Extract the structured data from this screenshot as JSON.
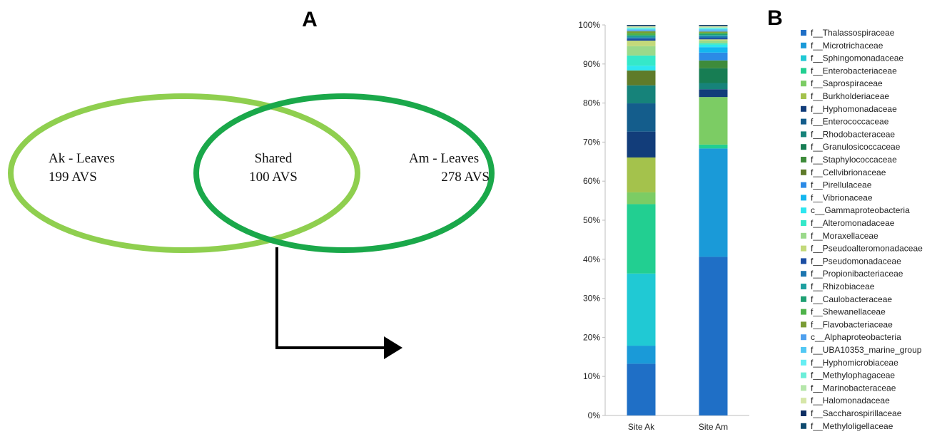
{
  "panels": {
    "a": "A",
    "b": "B"
  },
  "venn": {
    "left": {
      "name": "Ak - Leaves",
      "count": "199 AVS",
      "color": "#8fcf4f"
    },
    "center": {
      "name": "Shared",
      "count": "100 AVS"
    },
    "right": {
      "name": "Am - Leaves",
      "count": "278 AVS",
      "color": "#1aa84a"
    }
  },
  "chart_data": {
    "type": "bar",
    "stacked": true,
    "categories": [
      "Site Ak",
      "Site Am"
    ],
    "ylim": [
      0,
      100
    ],
    "yticks": [
      "0%",
      "10%",
      "20%",
      "30%",
      "40%",
      "50%",
      "60%",
      "70%",
      "80%",
      "90%",
      "100%"
    ],
    "legend_position": "right",
    "series": [
      {
        "name": "f__Thalassospiraceae",
        "color": "#1f6fc6",
        "values": [
          13.2,
          40.7
        ]
      },
      {
        "name": "f__Microtrichaceae",
        "color": "#1a9ad8",
        "values": [
          4.6,
          27.8
        ]
      },
      {
        "name": "f__Sphingomonadaceae",
        "color": "#20c9d4",
        "values": [
          18.4,
          0
        ]
      },
      {
        "name": "f__Enterobacteriaceae",
        "color": "#22cf91",
        "values": [
          17.7,
          1.0
        ]
      },
      {
        "name": "f__Saprospiraceae",
        "color": "#7ccc64",
        "values": [
          3.0,
          12.2
        ]
      },
      {
        "name": "f__Burkholderiaceae",
        "color": "#a4c24c",
        "values": [
          8.9,
          0
        ]
      },
      {
        "name": "f__Hyphomonadaceae",
        "color": "#123d7a",
        "values": [
          6.6,
          2.0
        ]
      },
      {
        "name": "f__Enterococcaceae",
        "color": "#145d8c",
        "values": [
          7.2,
          0
        ]
      },
      {
        "name": "f__Rhodobacteraceae",
        "color": "#16837a",
        "values": [
          4.6,
          1.6
        ]
      },
      {
        "name": "f__Granulosicoccaceae",
        "color": "#177d53",
        "values": [
          0,
          3.8
        ]
      },
      {
        "name": "f__Staphylococcaceae",
        "color": "#3e8b3a",
        "values": [
          0,
          2.0
        ]
      },
      {
        "name": "f__Cellvibrionaceae",
        "color": "#5f7b2a",
        "values": [
          3.8,
          0
        ]
      },
      {
        "name": "f__Pirellulaceae",
        "color": "#2b8ae6",
        "values": [
          0,
          2.0
        ]
      },
      {
        "name": "f__Vibrionaceae",
        "color": "#14b6ef",
        "values": [
          0,
          1.4
        ]
      },
      {
        "name": "c__Gammaproteobacteria",
        "color": "#2ee6f0",
        "values": [
          1.2,
          0.6
        ]
      },
      {
        "name": "f__Alteromonadaceae",
        "color": "#35e8c9",
        "values": [
          2.6,
          0.4
        ]
      },
      {
        "name": "f__Moraxellaceae",
        "color": "#9ad98a",
        "values": [
          2.4,
          0.7
        ]
      },
      {
        "name": "f__Pseudoalteromonadaceae",
        "color": "#c3d97a",
        "values": [
          1.4,
          0.3
        ]
      },
      {
        "name": "f__Pseudomonadaceae",
        "color": "#1c4ea3",
        "values": [
          0.5,
          0.4
        ]
      },
      {
        "name": "f__Propionibacteriaceae",
        "color": "#1c76b0",
        "values": [
          0.3,
          0.4
        ]
      },
      {
        "name": "f__Rhizobiaceae",
        "color": "#1ea0a0",
        "values": [
          0.3,
          0.3
        ]
      },
      {
        "name": "f__Caulobacteraceae",
        "color": "#1fa073",
        "values": [
          0.3,
          0.3
        ]
      },
      {
        "name": "f__Shewanellaceae",
        "color": "#4fb34a",
        "values": [
          0.5,
          0.3
        ]
      },
      {
        "name": "f__Flavobacteriaceae",
        "color": "#7a9c35",
        "values": [
          0.5,
          0.3
        ]
      },
      {
        "name": "c__Alphaproteobacteria",
        "color": "#4fa0ee",
        "values": [
          0.3,
          0.3
        ]
      },
      {
        "name": "f__UBA10353_marine_group",
        "color": "#52c8f4",
        "values": [
          0.2,
          0.3
        ]
      },
      {
        "name": "f__Hyphomicrobiaceae",
        "color": "#66eef3",
        "values": [
          0.2,
          0.2
        ]
      },
      {
        "name": "f__Methylophagaceae",
        "color": "#6beed9",
        "values": [
          0.2,
          0.2
        ]
      },
      {
        "name": "f__Marinobacteraceae",
        "color": "#b5e6aa",
        "values": [
          0.2,
          0.2
        ]
      },
      {
        "name": "f__Halomonadaceae",
        "color": "#d6e6a8",
        "values": [
          0.2,
          0.2
        ]
      },
      {
        "name": "f__Saccharospirillaceae",
        "color": "#0f2f63",
        "values": [
          0.2,
          0.2
        ]
      },
      {
        "name": "f__Methyloligellaceae",
        "color": "#0f4a6e",
        "values": [
          0.1,
          0.1
        ]
      }
    ]
  }
}
